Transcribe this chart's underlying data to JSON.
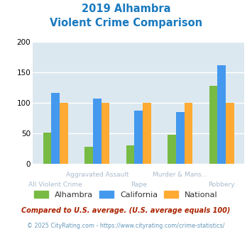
{
  "title_line1": "2019 Alhambra",
  "title_line2": "Violent Crime Comparison",
  "title_color": "#1a7abf",
  "categories": [
    "All Violent Crime",
    "Aggravated Assault",
    "Rape",
    "Murder & Mans...",
    "Robbery"
  ],
  "series": {
    "Alhambra": [
      51,
      28,
      30,
      48,
      128
    ],
    "California": [
      117,
      107,
      87,
      85,
      162
    ],
    "National": [
      100,
      100,
      100,
      100,
      100
    ]
  },
  "colors": {
    "Alhambra": "#77bb44",
    "California": "#4499ee",
    "National": "#ffaa33"
  },
  "ylim": [
    0,
    200
  ],
  "yticks": [
    0,
    50,
    100,
    150,
    200
  ],
  "plot_bg": "#dce8f0",
  "grid_color": "#ffffff",
  "footer_text1": "Compared to U.S. average. (U.S. average equals 100)",
  "footer_text2": "© 2025 CityRating.com - https://www.cityrating.com/crime-statistics/",
  "footer_color1": "#aa2200",
  "footer_color2": "#6699bb",
  "xlabel_color": "#aabbcc",
  "bar_width": 0.2
}
